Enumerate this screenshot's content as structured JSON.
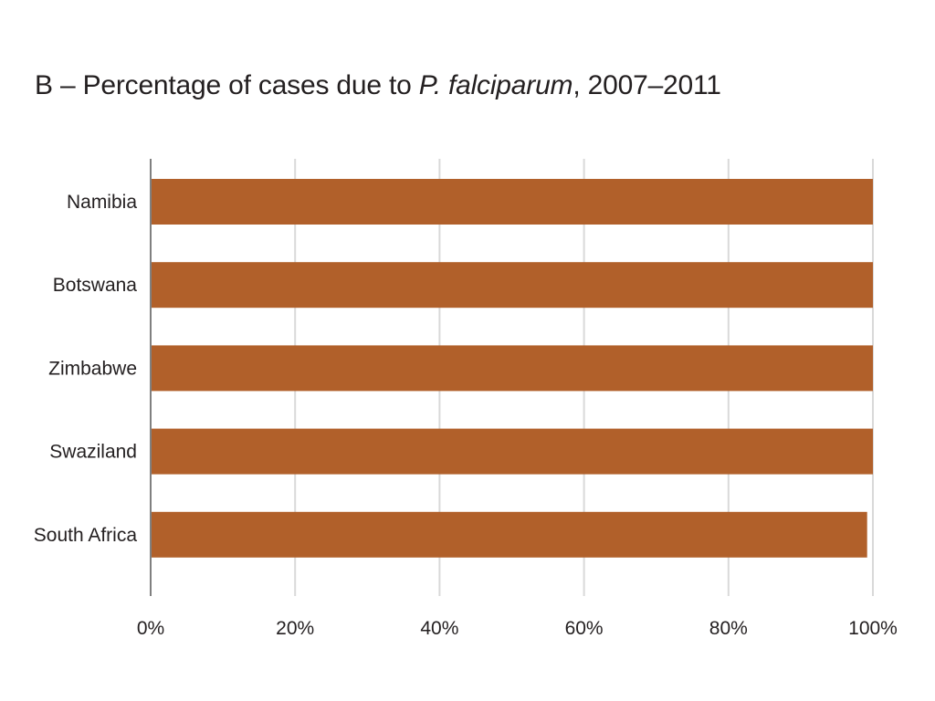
{
  "title": {
    "prefix": "B – Percentage of cases due to ",
    "italic": "P. falciparum",
    "suffix": ", 2007–2011"
  },
  "chart_data": {
    "type": "bar",
    "orientation": "horizontal",
    "title": "B – Percentage of cases due to P. falciparum, 2007–2011",
    "categories": [
      "Namibia",
      "Botswana",
      "Zimbabwe",
      "Swaziland",
      "South Africa"
    ],
    "values": [
      100,
      100,
      100,
      100,
      99.2
    ],
    "xlim": [
      0,
      100
    ],
    "xticks": [
      0,
      20,
      40,
      60,
      80,
      100
    ],
    "xtick_labels": [
      "0%",
      "20%",
      "40%",
      "60%",
      "80%",
      "100%"
    ],
    "xlabel": "",
    "ylabel": "",
    "grid": true,
    "bar_color": "#b1602a",
    "grid_color": "#d9d9d9",
    "axis_color": "#808080"
  }
}
